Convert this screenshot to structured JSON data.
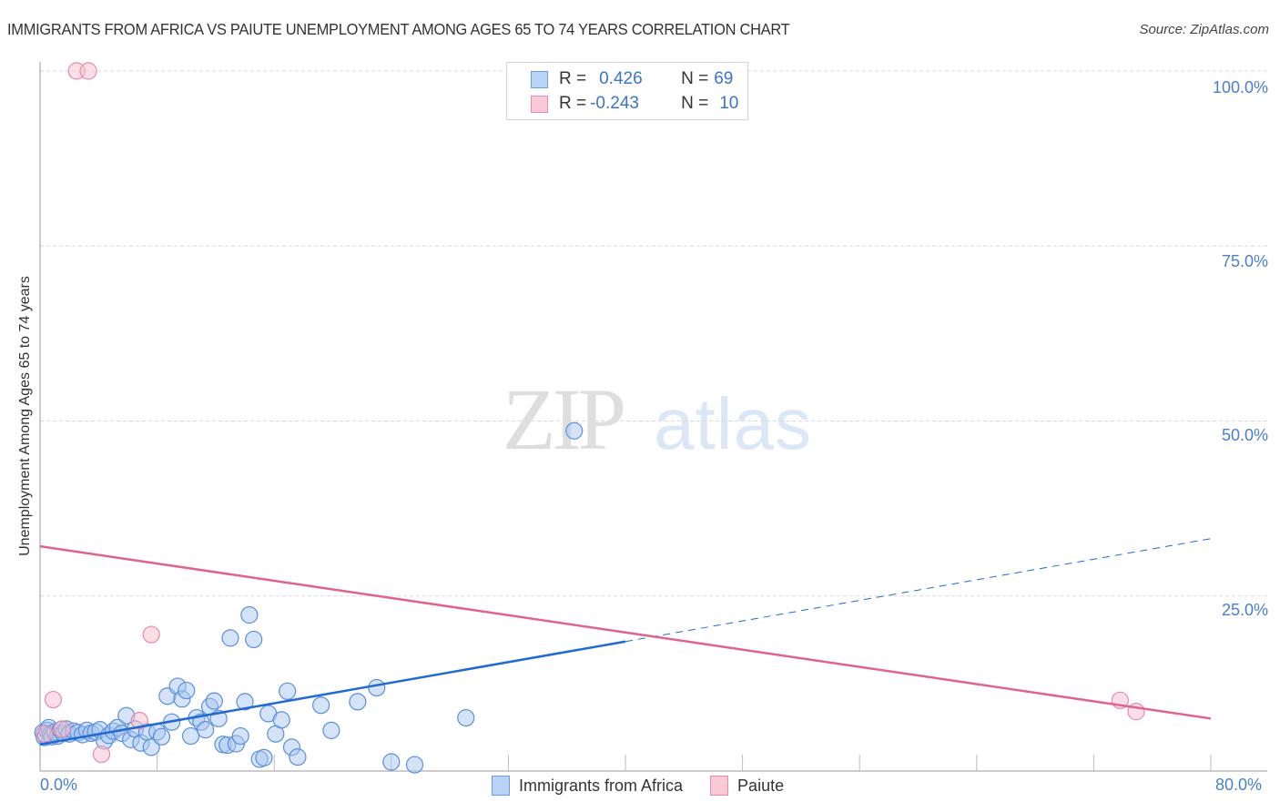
{
  "header": {
    "title": "IMMIGRANTS FROM AFRICA VS PAIUTE UNEMPLOYMENT AMONG AGES 65 TO 74 YEARS CORRELATION CHART",
    "source": "Source: ZipAtlas.com"
  },
  "watermark": {
    "zip": "ZIP",
    "atlas": "atlas"
  },
  "legend": {
    "rows": [
      {
        "r_label": "R = ",
        "r_value": "0.426",
        "n_label": "N = ",
        "n_value": "69",
        "color": "#a9c8f0",
        "border": "#6d9be0"
      },
      {
        "r_label": "R = ",
        "r_value": "-0.243",
        "n_label": "N = ",
        "n_value": "10",
        "color": "#f7c3d3",
        "border": "#e88aa8"
      }
    ]
  },
  "bottom_legend": {
    "items": [
      {
        "label": "Immigrants from Africa",
        "color": "#b9d3f4",
        "border": "#6d9be0"
      },
      {
        "label": "Paiute",
        "color": "#f9c9d8",
        "border": "#e88aa8"
      }
    ]
  },
  "axes": {
    "ylabel": "Unemployment Among Ages 65 to 74 years",
    "y_ticks": [
      "100.0%",
      "75.0%",
      "50.0%",
      "25.0%"
    ],
    "x_ticks": [
      "0.0%",
      "80.0%"
    ]
  },
  "colors": {
    "blue_fill": "#a9c8f0",
    "blue_stroke": "#5a8fdc",
    "blue_line": "#2169d3",
    "pink_fill": "#f7bfd0",
    "pink_stroke": "#e88aa8",
    "pink_line": "#e0628f",
    "grid": "#d9d9d9",
    "tick_label": "#4a7fd0"
  },
  "chart_data": {
    "type": "scatter",
    "title": "IMMIGRANTS FROM AFRICA VS PAIUTE UNEMPLOYMENT AMONG AGES 65 TO 74 YEARS CORRELATION CHART",
    "xlabel": "",
    "ylabel": "Unemployment Among Ages 65 to 74 years",
    "xlim": [
      0,
      80
    ],
    "ylim": [
      0,
      100
    ],
    "x_tick_labels": [
      "0.0%",
      "80.0%"
    ],
    "y_tick_labels": [
      "25.0%",
      "50.0%",
      "75.0%",
      "100.0%"
    ],
    "grid": true,
    "legend_position": "top-center",
    "series": [
      {
        "name": "Immigrants from Africa",
        "R": 0.426,
        "N": 69,
        "trend": {
          "x0": 0,
          "y0": 3.8,
          "x1_solid": 40,
          "y1_solid": 18.5,
          "x1_dashed": 80,
          "y1_dashed": 33.2
        },
        "points": [
          [
            0.2,
            5.5
          ],
          [
            0.3,
            4.8
          ],
          [
            0.4,
            5.0
          ],
          [
            0.5,
            5.8
          ],
          [
            0.6,
            6.2
          ],
          [
            0.7,
            5.2
          ],
          [
            0.8,
            4.9
          ],
          [
            1.0,
            5.6
          ],
          [
            1.2,
            5.0
          ],
          [
            1.4,
            5.9
          ],
          [
            1.6,
            5.4
          ],
          [
            1.8,
            6.0
          ],
          [
            2.0,
            5.3
          ],
          [
            2.3,
            5.7
          ],
          [
            2.6,
            5.5
          ],
          [
            2.9,
            5.2
          ],
          [
            3.2,
            5.8
          ],
          [
            3.5,
            5.4
          ],
          [
            3.8,
            5.6
          ],
          [
            4.1,
            5.9
          ],
          [
            4.4,
            4.3
          ],
          [
            4.7,
            5.1
          ],
          [
            5.0,
            5.7
          ],
          [
            5.3,
            6.2
          ],
          [
            5.6,
            5.4
          ],
          [
            5.9,
            7.9
          ],
          [
            6.2,
            4.5
          ],
          [
            6.5,
            6.0
          ],
          [
            6.9,
            4.0
          ],
          [
            7.3,
            5.6
          ],
          [
            7.6,
            3.4
          ],
          [
            8.0,
            5.6
          ],
          [
            8.3,
            4.9
          ],
          [
            8.7,
            10.7
          ],
          [
            9.0,
            7.0
          ],
          [
            9.4,
            12.1
          ],
          [
            9.7,
            10.3
          ],
          [
            10.0,
            11.5
          ],
          [
            10.3,
            5.0
          ],
          [
            10.7,
            7.6
          ],
          [
            11.0,
            7.0
          ],
          [
            11.3,
            5.9
          ],
          [
            11.6,
            9.2
          ],
          [
            11.9,
            10.0
          ],
          [
            12.2,
            7.5
          ],
          [
            12.5,
            3.8
          ],
          [
            12.8,
            3.7
          ],
          [
            13.0,
            19.0
          ],
          [
            13.4,
            3.9
          ],
          [
            13.7,
            5.0
          ],
          [
            14.0,
            9.9
          ],
          [
            14.3,
            22.3
          ],
          [
            14.6,
            18.8
          ],
          [
            15.0,
            1.7
          ],
          [
            15.3,
            1.9
          ],
          [
            15.6,
            8.2
          ],
          [
            16.1,
            5.3
          ],
          [
            16.5,
            7.3
          ],
          [
            16.9,
            11.4
          ],
          [
            17.2,
            3.4
          ],
          [
            17.6,
            2.0
          ],
          [
            19.2,
            9.4
          ],
          [
            19.9,
            5.8
          ],
          [
            21.7,
            9.9
          ],
          [
            23.0,
            11.9
          ],
          [
            24.0,
            1.3
          ],
          [
            25.6,
            0.9
          ],
          [
            29.1,
            7.6
          ],
          [
            36.5,
            48.6
          ]
        ]
      },
      {
        "name": "Paiute",
        "R": -0.243,
        "N": 10,
        "trend": {
          "x0": 0,
          "y0": 32.1,
          "x1": 80,
          "y1": 7.5
        },
        "points": [
          [
            0.3,
            5.3
          ],
          [
            0.9,
            10.2
          ],
          [
            1.5,
            6.0
          ],
          [
            2.5,
            100.0
          ],
          [
            3.3,
            100.0
          ],
          [
            4.2,
            2.4
          ],
          [
            6.8,
            7.2
          ],
          [
            7.6,
            19.5
          ],
          [
            73.8,
            10.1
          ],
          [
            74.9,
            8.5
          ]
        ]
      }
    ]
  }
}
